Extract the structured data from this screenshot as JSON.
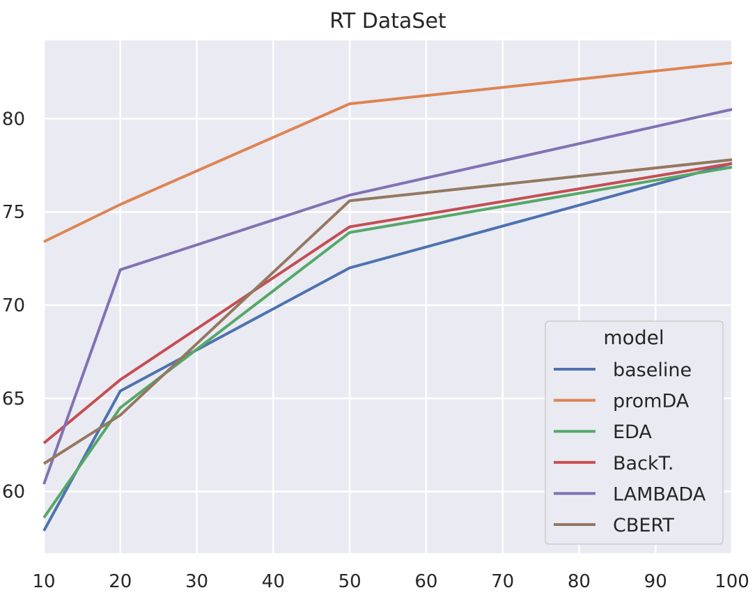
{
  "chart_data": {
    "type": "line",
    "title": "RT DataSet",
    "xlabel": "",
    "ylabel": "",
    "x": [
      10,
      20,
      50,
      100
    ],
    "xlim": [
      10,
      100
    ],
    "ylim": [
      56.7,
      84.2
    ],
    "xticks": [
      10,
      20,
      30,
      40,
      50,
      60,
      70,
      80,
      90,
      100
    ],
    "yticks": [
      60,
      65,
      70,
      75,
      80
    ],
    "grid": true,
    "legend_title": "model",
    "legend_position": "lower-right",
    "series": [
      {
        "name": "baseline",
        "color": "#4c72b0",
        "values": [
          57.9,
          65.4,
          72.0,
          77.6
        ]
      },
      {
        "name": "promDA",
        "color": "#dd8452",
        "values": [
          73.4,
          75.4,
          80.8,
          83.0
        ]
      },
      {
        "name": "EDA",
        "color": "#55a868",
        "values": [
          58.6,
          64.5,
          73.9,
          77.4
        ]
      },
      {
        "name": "BackT.",
        "color": "#c44e52",
        "values": [
          62.6,
          66.0,
          74.2,
          77.6
        ]
      },
      {
        "name": "LAMBADA",
        "color": "#8172b3",
        "values": [
          60.4,
          71.9,
          75.9,
          80.5
        ]
      },
      {
        "name": "CBERT",
        "color": "#937860",
        "values": [
          61.5,
          64.1,
          75.6,
          77.8
        ]
      }
    ]
  }
}
